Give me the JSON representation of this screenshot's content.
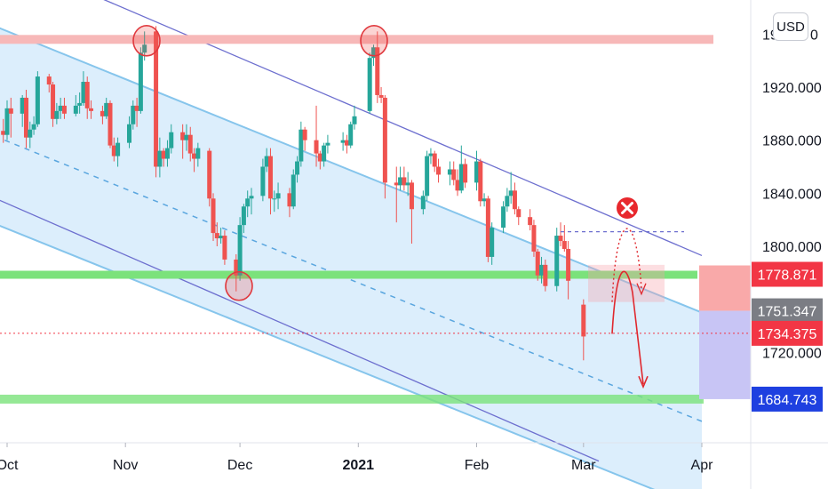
{
  "currency": "USD",
  "chart_data": {
    "type": "candlestick",
    "y_range": [
      1660,
      1995
    ],
    "x_range": [
      "2020-09-30",
      "2021-04-08"
    ],
    "y_ticks": [
      {
        "value": 1920,
        "label": "1920.000"
      },
      {
        "value": 1880,
        "label": "1880.000"
      },
      {
        "value": 1840,
        "label": "1840.000"
      },
      {
        "value": 1800,
        "label": "1800.000"
      },
      {
        "value": 1720,
        "label": "1720.000"
      }
    ],
    "y_tick_partial": {
      "value": 1960,
      "label": "19"
    },
    "y_tick_partial_tail": "0",
    "x_ticks": [
      {
        "date": "2020-10-01",
        "label": "Oct",
        "bold": false
      },
      {
        "date": "2020-11-01",
        "label": "Nov",
        "bold": false
      },
      {
        "date": "2020-12-01",
        "label": "Dec",
        "bold": false
      },
      {
        "date": "2021-01-01",
        "label": "2021",
        "bold": true
      },
      {
        "date": "2021-02-01",
        "label": "Feb",
        "bold": false
      },
      {
        "date": "2021-03-01",
        "label": "Mar",
        "bold": false
      },
      {
        "date": "2021-04-01",
        "label": "Apr",
        "bold": false
      }
    ],
    "price_tags": [
      {
        "value": 1778.871,
        "label": "1778.871",
        "color": "#f23645"
      },
      {
        "value": 1751.347,
        "label": "1751.347",
        "color": "#7b7d84"
      },
      {
        "value": 1734.375,
        "label": "1734.375",
        "color": "#f23645"
      },
      {
        "value": 1684.743,
        "label": "1684.743",
        "color": "#1e40e0"
      }
    ],
    "colors": {
      "up": "#26a69a",
      "down": "#ef5350",
      "channel_fill": "#d6ebfb",
      "channel_line": "#86c5ec",
      "support": "#7be27b",
      "resistance": "#f7b8b8"
    },
    "candles": [
      [
        "2020-09-30",
        1887,
        1896,
        1878,
        1884
      ],
      [
        "2020-10-01",
        1884,
        1910,
        1880,
        1904
      ],
      [
        "2020-10-02",
        1904,
        1912,
        1882,
        1900
      ],
      [
        "2020-10-05",
        1900,
        1914,
        1890,
        1912
      ],
      [
        "2020-10-06",
        1912,
        1918,
        1874,
        1882
      ],
      [
        "2020-10-07",
        1882,
        1894,
        1874,
        1888
      ],
      [
        "2020-10-08",
        1888,
        1898,
        1884,
        1892
      ],
      [
        "2020-10-09",
        1892,
        1932,
        1890,
        1928
      ],
      [
        "2020-10-12",
        1928,
        1930,
        1916,
        1922
      ],
      [
        "2020-10-13",
        1922,
        1924,
        1890,
        1896
      ],
      [
        "2020-10-14",
        1896,
        1908,
        1892,
        1902
      ],
      [
        "2020-10-15",
        1902,
        1912,
        1896,
        1906
      ],
      [
        "2020-10-16",
        1906,
        1912,
        1896,
        1900
      ],
      [
        "2020-10-19",
        1900,
        1914,
        1898,
        1906
      ],
      [
        "2020-10-20",
        1906,
        1916,
        1900,
        1908
      ],
      [
        "2020-10-21",
        1908,
        1932,
        1906,
        1924
      ],
      [
        "2020-10-22",
        1924,
        1928,
        1896,
        1904
      ],
      [
        "2020-10-23",
        1904,
        1910,
        1896,
        1902
      ],
      [
        "2020-10-26",
        1902,
        1906,
        1892,
        1898
      ],
      [
        "2020-10-27",
        1898,
        1912,
        1896,
        1908
      ],
      [
        "2020-10-28",
        1908,
        1910,
        1874,
        1876
      ],
      [
        "2020-10-29",
        1876,
        1882,
        1864,
        1868
      ],
      [
        "2020-10-30",
        1868,
        1882,
        1860,
        1878
      ],
      [
        "2020-11-02",
        1878,
        1898,
        1874,
        1892
      ],
      [
        "2020-11-03",
        1892,
        1910,
        1888,
        1906
      ],
      [
        "2020-11-04",
        1906,
        1912,
        1890,
        1902
      ],
      [
        "2020-11-05",
        1902,
        1950,
        1900,
        1946
      ],
      [
        "2020-11-06",
        1946,
        1962,
        1940,
        1952
      ],
      [
        "2020-11-09",
        1962,
        1966,
        1852,
        1860
      ],
      [
        "2020-11-10",
        1860,
        1882,
        1852,
        1872
      ],
      [
        "2020-11-11",
        1872,
        1874,
        1860,
        1866
      ],
      [
        "2020-11-12",
        1866,
        1880,
        1860,
        1874
      ],
      [
        "2020-11-13",
        1874,
        1892,
        1870,
        1886
      ],
      [
        "2020-11-16",
        1886,
        1892,
        1866,
        1880
      ],
      [
        "2020-11-17",
        1880,
        1892,
        1872,
        1884
      ],
      [
        "2020-11-18",
        1884,
        1890,
        1864,
        1870
      ],
      [
        "2020-11-19",
        1870,
        1874,
        1856,
        1866
      ],
      [
        "2020-11-20",
        1866,
        1878,
        1860,
        1874
      ],
      [
        "2020-11-23",
        1872,
        1874,
        1830,
        1836
      ],
      [
        "2020-11-24",
        1836,
        1840,
        1804,
        1810
      ],
      [
        "2020-11-25",
        1810,
        1818,
        1800,
        1806
      ],
      [
        "2020-11-26",
        1806,
        1814,
        1802,
        1808
      ],
      [
        "2020-11-27",
        1808,
        1812,
        1786,
        1790
      ],
      [
        "2020-11-30",
        1790,
        1794,
        1766,
        1778
      ],
      [
        "2020-12-01",
        1778,
        1822,
        1774,
        1816
      ],
      [
        "2020-12-02",
        1816,
        1832,
        1810,
        1830
      ],
      [
        "2020-12-03",
        1830,
        1842,
        1822,
        1836
      ],
      [
        "2020-12-04",
        1836,
        1844,
        1824,
        1838
      ],
      [
        "2020-12-07",
        1838,
        1866,
        1834,
        1860
      ],
      [
        "2020-12-08",
        1860,
        1874,
        1856,
        1868
      ],
      [
        "2020-12-09",
        1868,
        1874,
        1824,
        1836
      ],
      [
        "2020-12-10",
        1836,
        1842,
        1826,
        1836
      ],
      [
        "2020-12-11",
        1836,
        1848,
        1828,
        1840
      ],
      [
        "2020-12-14",
        1840,
        1844,
        1822,
        1830
      ],
      [
        "2020-12-15",
        1830,
        1858,
        1828,
        1854
      ],
      [
        "2020-12-16",
        1854,
        1868,
        1848,
        1864
      ],
      [
        "2020-12-17",
        1864,
        1894,
        1860,
        1888
      ],
      [
        "2020-12-18",
        1888,
        1890,
        1872,
        1880
      ],
      [
        "2020-12-21",
        1880,
        1906,
        1860,
        1870
      ],
      [
        "2020-12-22",
        1870,
        1872,
        1858,
        1864
      ],
      [
        "2020-12-23",
        1864,
        1878,
        1860,
        1876
      ],
      [
        "2020-12-24",
        1876,
        1884,
        1870,
        1878
      ],
      [
        "2020-12-28",
        1878,
        1886,
        1872,
        1880
      ],
      [
        "2020-12-29",
        1880,
        1884,
        1870,
        1876
      ],
      [
        "2020-12-30",
        1876,
        1894,
        1874,
        1892
      ],
      [
        "2020-12-31",
        1892,
        1906,
        1888,
        1898
      ],
      [
        "2021-01-04",
        1902,
        1946,
        1900,
        1942
      ],
      [
        "2021-01-05",
        1942,
        1952,
        1936,
        1950
      ],
      [
        "2021-01-06",
        1950,
        1962,
        1908,
        1914
      ],
      [
        "2021-01-07",
        1914,
        1920,
        1908,
        1912
      ],
      [
        "2021-01-08",
        1912,
        1914,
        1836,
        1848
      ],
      [
        "2021-01-11",
        1848,
        1860,
        1818,
        1846
      ],
      [
        "2021-01-12",
        1846,
        1860,
        1842,
        1852
      ],
      [
        "2021-01-13",
        1852,
        1860,
        1842,
        1846
      ],
      [
        "2021-01-14",
        1846,
        1856,
        1838,
        1848
      ],
      [
        "2021-01-15",
        1848,
        1850,
        1802,
        1828
      ],
      [
        "2021-01-18",
        1828,
        1842,
        1824,
        1838
      ],
      [
        "2021-01-19",
        1838,
        1872,
        1834,
        1868
      ],
      [
        "2021-01-20",
        1868,
        1874,
        1862,
        1870
      ],
      [
        "2021-01-21",
        1870,
        1872,
        1856,
        1860
      ],
      [
        "2021-01-22",
        1860,
        1866,
        1848,
        1854
      ],
      [
        "2021-01-25",
        1854,
        1864,
        1846,
        1858
      ],
      [
        "2021-01-26",
        1858,
        1864,
        1846,
        1850
      ],
      [
        "2021-01-27",
        1850,
        1858,
        1838,
        1842
      ],
      [
        "2021-01-28",
        1842,
        1876,
        1840,
        1862
      ],
      [
        "2021-01-29",
        1862,
        1866,
        1844,
        1848
      ],
      [
        "2021-02-01",
        1848,
        1872,
        1842,
        1864
      ],
      [
        "2021-02-02",
        1864,
        1866,
        1830,
        1834
      ],
      [
        "2021-02-03",
        1834,
        1840,
        1830,
        1836
      ],
      [
        "2021-02-04",
        1836,
        1838,
        1788,
        1792
      ],
      [
        "2021-02-05",
        1792,
        1818,
        1786,
        1814
      ],
      [
        "2021-02-08",
        1814,
        1834,
        1810,
        1830
      ],
      [
        "2021-02-09",
        1830,
        1844,
        1826,
        1838
      ],
      [
        "2021-02-10",
        1838,
        1856,
        1832,
        1842
      ],
      [
        "2021-02-11",
        1842,
        1848,
        1824,
        1828
      ],
      [
        "2021-02-12",
        1828,
        1830,
        1816,
        1822
      ],
      [
        "2021-02-15",
        1822,
        1828,
        1812,
        1816
      ],
      [
        "2021-02-16",
        1816,
        1820,
        1792,
        1796
      ],
      [
        "2021-02-17",
        1796,
        1798,
        1774,
        1778
      ],
      [
        "2021-02-18",
        1778,
        1792,
        1772,
        1786
      ],
      [
        "2021-02-19",
        1786,
        1790,
        1766,
        1770
      ],
      [
        "2021-02-22",
        1770,
        1814,
        1766,
        1808
      ],
      [
        "2021-02-23",
        1808,
        1818,
        1800,
        1804
      ],
      [
        "2021-02-24",
        1804,
        1816,
        1796,
        1798
      ],
      [
        "2021-02-25",
        1798,
        1804,
        1760,
        1774
      ],
      [
        "2021-03-01",
        1756,
        1760,
        1714,
        1732
      ]
    ],
    "support_bands": [
      1778.871,
      1684.743
    ],
    "resistance_band": 1956
  }
}
